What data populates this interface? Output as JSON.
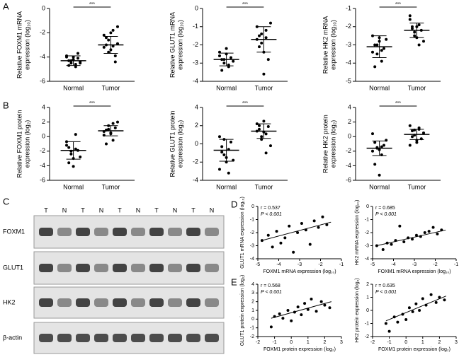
{
  "panel_labels": [
    "A",
    "B",
    "C",
    "D",
    "E"
  ],
  "blot": {
    "lanes": [
      "T",
      "N",
      "T",
      "N",
      "T",
      "N",
      "T",
      "N",
      "T",
      "N"
    ],
    "proteins": [
      "FOXM1",
      "GLUT1",
      "HK2",
      "β-actin"
    ]
  },
  "chart_data": [
    {
      "type": "dot",
      "ylabel": [
        "Relative FOXM1 mRNA",
        "expression (log₁₀)"
      ],
      "annotation": "***",
      "categories": [
        "Normal",
        "Tumor"
      ],
      "ylim": [
        -6,
        0
      ],
      "yticks": [
        -6,
        -4,
        -2,
        0
      ],
      "values": [
        [
          -4.0,
          -4.3,
          -4.5,
          -4.2,
          -4.6,
          -4.1,
          -4.4,
          -3.9,
          -4.7,
          -4.3,
          -4.0,
          -4.8,
          -3.7,
          -4.5
        ],
        [
          -2.2,
          -3.0,
          -2.6,
          -3.4,
          -1.8,
          -3.9,
          -2.9,
          -3.2,
          -2.4,
          -3.6,
          -2.0,
          -3.1,
          -4.4,
          -1.5
        ]
      ],
      "means": [
        -4.3,
        -3.0
      ],
      "sds": [
        0.4,
        0.7
      ]
    },
    {
      "type": "dot",
      "ylabel": [
        "Relative GLUT1 mRNA",
        "expression (log₁₀)"
      ],
      "annotation": "***",
      "categories": [
        "Normal",
        "Tumor"
      ],
      "ylim": [
        -4,
        0
      ],
      "yticks": [
        -4,
        -3,
        -2,
        -1,
        0
      ],
      "values": [
        [
          -2.6,
          -2.8,
          -3.0,
          -2.5,
          -3.2,
          -2.7,
          -2.9,
          -2.4,
          -3.4,
          -2.8,
          -2.2,
          -3.1
        ],
        [
          -1.0,
          -1.5,
          -1.9,
          -2.4,
          -1.2,
          -2.8,
          -0.8,
          -1.7,
          -2.1,
          -1.4,
          -3.6,
          -1.6
        ]
      ],
      "means": [
        -2.8,
        -1.7
      ],
      "sds": [
        0.35,
        0.7
      ]
    },
    {
      "type": "dot",
      "ylabel": [
        "Relative HK2 mRNA",
        "expression (log₁₀)"
      ],
      "annotation": "***",
      "categories": [
        "Normal",
        "Tumor"
      ],
      "ylim": [
        -5,
        -1
      ],
      "yticks": [
        -5,
        -4,
        -3,
        -2,
        -1
      ],
      "values": [
        [
          -2.5,
          -3.0,
          -3.5,
          -2.8,
          -3.9,
          -3.2,
          -2.7,
          -3.4,
          -4.2,
          -3.0,
          -2.6,
          -3.3
        ],
        [
          -1.6,
          -2.0,
          -2.3,
          -2.6,
          -1.9,
          -2.2,
          -2.8,
          -1.4,
          -2.1,
          -2.5,
          -2.0,
          -3.0
        ]
      ],
      "means": [
        -3.1,
        -2.2
      ],
      "sds": [
        0.6,
        0.4
      ]
    },
    {
      "type": "dot",
      "ylabel": [
        "Relative FOXM1 protein",
        "expression (log₂)"
      ],
      "annotation": "***",
      "categories": [
        "Normal",
        "Tumor"
      ],
      "ylim": [
        -6,
        4
      ],
      "yticks": [
        -6,
        -4,
        -2,
        0,
        2,
        4
      ],
      "values": [
        [
          -0.7,
          -1.5,
          -2.4,
          -3.0,
          0.3,
          -1.9,
          -2.8,
          -1.2,
          -3.6,
          -2.0,
          -4.1,
          -1.7
        ],
        [
          0.2,
          0.9,
          1.5,
          0.5,
          -0.5,
          1.2,
          2.0,
          0.7,
          -1.0,
          1.0,
          0.4,
          1.8
        ]
      ],
      "means": [
        -1.9,
        0.8
      ],
      "sds": [
        1.2,
        0.7
      ]
    },
    {
      "type": "dot",
      "ylabel": [
        "Relative GLUT1 protein",
        "expression (log₂)"
      ],
      "annotation": "***",
      "categories": [
        "Normal",
        "Tumor"
      ],
      "ylim": [
        -4,
        4
      ],
      "yticks": [
        -4,
        -2,
        0,
        2,
        4
      ],
      "values": [
        [
          0.8,
          -0.3,
          -1.2,
          -2.0,
          -0.6,
          0.2,
          -1.8,
          -2.8,
          -0.9,
          0.5,
          -1.5,
          -3.2
        ],
        [
          2.2,
          1.6,
          0.8,
          2.5,
          1.1,
          1.9,
          -0.2,
          1.4,
          2.0,
          0.5,
          1.3,
          -1.0
        ]
      ],
      "means": [
        -0.7,
        1.4
      ],
      "sds": [
        1.2,
        0.8
      ]
    },
    {
      "type": "dot",
      "ylabel": [
        "Relative HK2 protein",
        "expression (log₂)"
      ],
      "annotation": "***",
      "categories": [
        "Normal",
        "Tumor"
      ],
      "ylim": [
        -6,
        4
      ],
      "yticks": [
        -6,
        -4,
        -2,
        0,
        2,
        4
      ],
      "values": [
        [
          0.4,
          -0.8,
          -1.5,
          -1.8,
          -2.5,
          -1.2,
          -0.5,
          -2.0,
          -3.8,
          -1.6,
          -5.3,
          -1.4
        ],
        [
          1.5,
          0.8,
          0.2,
          -0.5,
          1.0,
          -0.3,
          0.5,
          -1.2,
          0.0,
          0.9,
          -0.8,
          1.2
        ]
      ],
      "means": [
        -1.6,
        0.3
      ],
      "sds": [
        1.0,
        0.7
      ]
    },
    {
      "type": "scatter",
      "xlabel": "FOXM1 mRNA expression (log₁₀)",
      "ylabel": "GLUT1 mRNA expression (log₁₀)",
      "stats": [
        "r = 0.537",
        "P < 0.001"
      ],
      "xlim": [
        -5,
        -1
      ],
      "xticks": [
        -5,
        -4,
        -3,
        -2,
        -1
      ],
      "ylim": [
        -4,
        0
      ],
      "yticks": [
        -4,
        -3,
        -2,
        -1,
        0
      ],
      "x": [
        -4.8,
        -4.5,
        -4.3,
        -4.1,
        -3.9,
        -3.7,
        -3.5,
        -3.3,
        -3.1,
        -2.9,
        -2.7,
        -2.5,
        -2.3,
        -2.1,
        -1.9,
        -1.7
      ],
      "y": [
        -2.6,
        -2.2,
        -3.1,
        -1.9,
        -2.8,
        -2.4,
        -1.5,
        -3.5,
        -2.0,
        -1.3,
        -1.8,
        -2.9,
        -1.1,
        -1.6,
        -0.8,
        -1.4
      ],
      "fit": {
        "x": [
          -4.8,
          -1.5
        ],
        "y": [
          -2.6,
          -1.2
        ]
      }
    },
    {
      "type": "scatter",
      "xlabel": "FOXM1 mRNA expression (log₁₀)",
      "ylabel": "HK2 mRNA expression (log₁₀)",
      "stats": [
        "r = 0.685",
        "P < 0.001"
      ],
      "xlim": [
        -5,
        -1
      ],
      "xticks": [
        -5,
        -4,
        -3,
        -2,
        -1
      ],
      "ylim": [
        -4,
        0
      ],
      "yticks": [
        -4,
        -3,
        -2,
        -1,
        0
      ],
      "x": [
        -4.8,
        -4.5,
        -4.3,
        -4.1,
        -3.9,
        -3.7,
        -3.5,
        -3.3,
        -3.1,
        -2.9,
        -2.7,
        -2.5,
        -2.3,
        -2.1,
        -1.9,
        -1.7
      ],
      "y": [
        -3.0,
        -3.3,
        -2.8,
        -2.9,
        -2.6,
        -1.5,
        -2.7,
        -2.4,
        -2.5,
        -2.2,
        -2.3,
        -2.0,
        -1.9,
        -1.6,
        -2.1,
        -1.8
      ],
      "fit": {
        "x": [
          -4.8,
          -1.5
        ],
        "y": [
          -3.0,
          -1.8
        ]
      }
    },
    {
      "type": "scatter",
      "xlabel": "FOXM1 protein expression (log₂)",
      "ylabel": "GLUT1 protein expression (log₂)",
      "stats": [
        "r = 0.568",
        "P < 0.001"
      ],
      "xlim": [
        -2,
        3
      ],
      "xticks": [
        -2,
        -1,
        0,
        1,
        2,
        3
      ],
      "ylim": [
        -2,
        4
      ],
      "yticks": [
        -2,
        -1,
        0,
        1,
        2,
        3,
        4
      ],
      "x": [
        -1.2,
        -1.0,
        -0.7,
        -0.5,
        -0.2,
        0,
        0.2,
        0.4,
        0.6,
        0.8,
        1.0,
        1.2,
        1.5,
        1.8,
        2.0,
        2.3
      ],
      "y": [
        -0.9,
        0.3,
        0.6,
        0.1,
        1.0,
        -0.2,
        0.8,
        1.4,
        0.5,
        1.8,
        1.1,
        2.3,
        0.9,
        2.0,
        1.6,
        1.3
      ],
      "fit": {
        "x": [
          -1.2,
          2.4
        ],
        "y": [
          0.1,
          2.0
        ]
      }
    },
    {
      "type": "scatter",
      "xlabel": "FOXM1 protein expression (log₂)",
      "ylabel": "HK2 protein expression (log₂)",
      "stats": [
        "r = 0.635",
        "P < 0.001"
      ],
      "xlim": [
        -2,
        3
      ],
      "xticks": [
        -2,
        -1,
        0,
        1,
        2,
        3
      ],
      "ylim": [
        -2,
        2
      ],
      "yticks": [
        -2,
        -1,
        0,
        1,
        2
      ],
      "x": [
        -1.2,
        -1.0,
        -0.7,
        -0.5,
        -0.2,
        0,
        0.2,
        0.4,
        0.6,
        0.8,
        1.0,
        1.2,
        1.5,
        1.8,
        2.0,
        2.3
      ],
      "y": [
        -1.0,
        -1.6,
        -0.5,
        -0.9,
        -0.3,
        -0.7,
        0.2,
        -0.1,
        0.5,
        0.0,
        0.9,
        0.4,
        1.2,
        0.6,
        1.0,
        0.8
      ],
      "fit": {
        "x": [
          -1.2,
          2.4
        ],
        "y": [
          -0.8,
          1.1
        ]
      }
    }
  ]
}
